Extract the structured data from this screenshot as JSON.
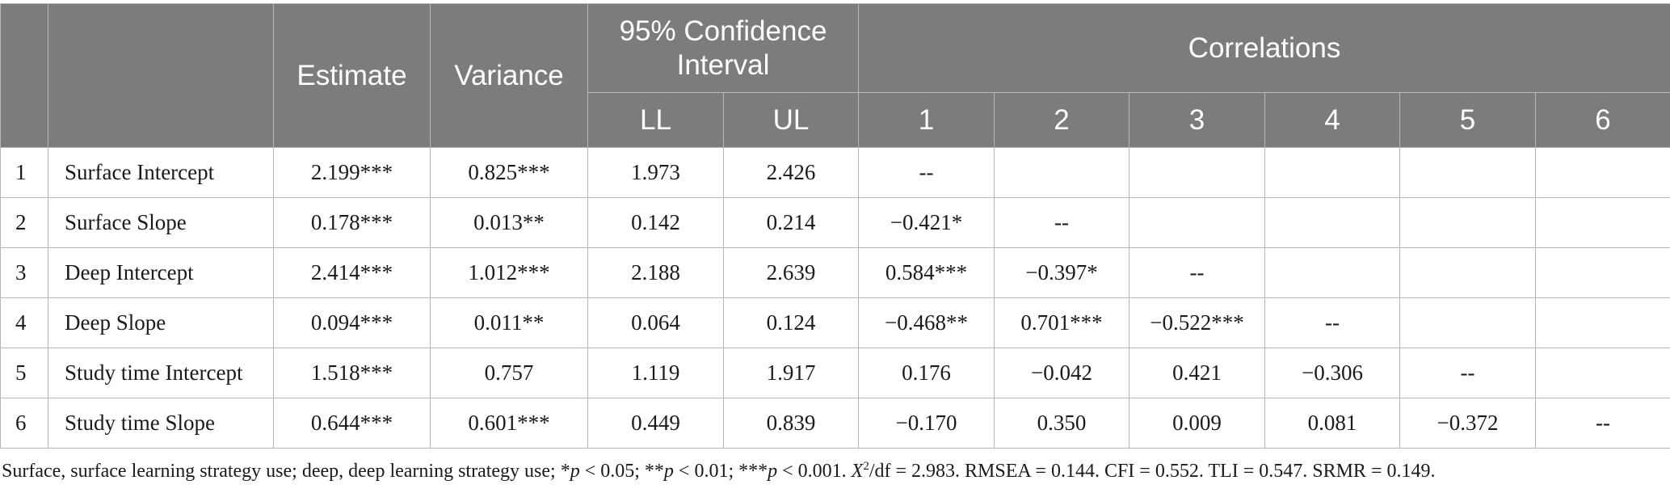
{
  "header": {
    "estimate": "Estimate",
    "variance": "Variance",
    "ci": "95% Confidence Interval",
    "correlations": "Correlations",
    "ll": "LL",
    "ul": "UL",
    "corr_cols": [
      "1",
      "2",
      "3",
      "4",
      "5",
      "6"
    ]
  },
  "rows": [
    {
      "num": "1",
      "label": "Surface Intercept",
      "estimate": "2.199***",
      "variance": "0.825***",
      "ll": "1.973",
      "ul": "2.426",
      "corr": [
        "--",
        "",
        "",
        "",
        "",
        ""
      ]
    },
    {
      "num": "2",
      "label": "Surface Slope",
      "estimate": "0.178***",
      "variance": "0.013**",
      "ll": "0.142",
      "ul": "0.214",
      "corr": [
        "−0.421*",
        "--",
        "",
        "",
        "",
        ""
      ]
    },
    {
      "num": "3",
      "label": "Deep Intercept",
      "estimate": "2.414***",
      "variance": "1.012***",
      "ll": "2.188",
      "ul": "2.639",
      "corr": [
        "0.584***",
        "−0.397*",
        "--",
        "",
        "",
        ""
      ]
    },
    {
      "num": "4",
      "label": "Deep Slope",
      "estimate": "0.094***",
      "variance": "0.011**",
      "ll": "0.064",
      "ul": "0.124",
      "corr": [
        "−0.468**",
        "0.701***",
        "−0.522***",
        "--",
        "",
        ""
      ]
    },
    {
      "num": "5",
      "label": "Study time Intercept",
      "estimate": "1.518***",
      "variance": "0.757",
      "ll": "1.119",
      "ul": "1.917",
      "corr": [
        "0.176",
        "−0.042",
        "0.421",
        "−0.306",
        "--",
        ""
      ]
    },
    {
      "num": "6",
      "label": "Study time Slope",
      "estimate": "0.644***",
      "variance": "0.601***",
      "ll": "0.449",
      "ul": "0.839",
      "corr": [
        "−0.170",
        "0.350",
        "0.009",
        "0.081",
        "−0.372",
        "--"
      ]
    }
  ],
  "note": {
    "lead": "Surface, surface learning strategy use; deep, deep learning strategy use; *",
    "p1_var": "p",
    "p1": " < 0.05; **",
    "p2_var": "p",
    "p2": " < 0.01; ***",
    "p3_var": "p",
    "p3": " < 0.001. ",
    "x_var": "X",
    "x_sup": "2",
    "rest": "/df = 2.983. RMSEA = 0.144. CFI = 0.552. TLI = 0.547. SRMR = 0.149."
  }
}
